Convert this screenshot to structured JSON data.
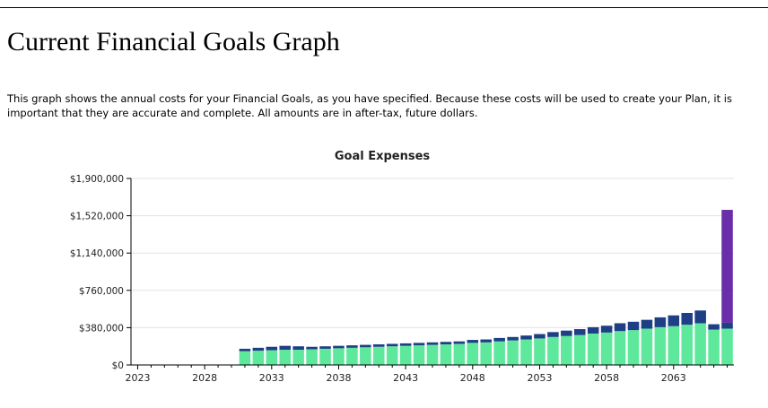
{
  "page": {
    "title": "Current Financial Goals Graph",
    "description": "This graph shows the annual costs for your Financial Goals, as you have specified.  Because these costs will be used to create your Plan, it is important that they are accurate and complete. All amounts are in after-tax, future dollars."
  },
  "colors": {
    "base_series": "#5ee89c",
    "second_series": "#1e3f86",
    "third_series": "#6a2eab",
    "gridline": "#e3e3e3",
    "axis": "#000000"
  },
  "chart_data": {
    "type": "bar",
    "stacked": true,
    "title": "Goal Expenses",
    "xlabel": "",
    "ylabel": "",
    "y_ticks": [
      "$0",
      "$380,000",
      "$760,000",
      "$1,140,000",
      "$1,520,000",
      "$1,900,000"
    ],
    "y_tick_values": [
      0,
      380000,
      760000,
      1140000,
      1520000,
      1900000
    ],
    "ylim": [
      0,
      1900000
    ],
    "x_ticks": [
      "2023",
      "2028",
      "2033",
      "2038",
      "2043",
      "2048",
      "2053",
      "2058",
      "2063"
    ],
    "grid": true,
    "legend": "none",
    "categories": [
      2023,
      2024,
      2025,
      2026,
      2027,
      2028,
      2029,
      2030,
      2031,
      2032,
      2033,
      2034,
      2035,
      2036,
      2037,
      2038,
      2039,
      2040,
      2041,
      2042,
      2043,
      2044,
      2045,
      2046,
      2047,
      2048,
      2049,
      2050,
      2051,
      2052,
      2053,
      2054,
      2055,
      2056,
      2057,
      2058,
      2059,
      2060,
      2061,
      2062,
      2063,
      2064,
      2065,
      2066,
      2067
    ],
    "series": [
      {
        "values": [
          0,
          0,
          0,
          0,
          0,
          0,
          0,
          4000,
          140000,
          145000,
          150000,
          155000,
          155000,
          160000,
          165000,
          170000,
          175000,
          180000,
          185000,
          190000,
          195000,
          200000,
          205000,
          210000,
          215000,
          225000,
          230000,
          240000,
          250000,
          260000,
          270000,
          285000,
          295000,
          305000,
          320000,
          330000,
          345000,
          355000,
          370000,
          385000,
          395000,
          410000,
          425000,
          360000,
          370000
        ]
      },
      {
        "values": [
          0,
          0,
          0,
          0,
          0,
          0,
          0,
          0,
          25000,
          30000,
          35000,
          40000,
          35000,
          25000,
          25000,
          25000,
          25000,
          25000,
          25000,
          25000,
          25000,
          25000,
          25000,
          25000,
          25000,
          30000,
          30000,
          35000,
          35000,
          40000,
          45000,
          50000,
          55000,
          60000,
          65000,
          70000,
          80000,
          85000,
          90000,
          100000,
          110000,
          120000,
          130000,
          55000,
          60000
        ]
      },
      {
        "values": [
          0,
          0,
          0,
          0,
          0,
          0,
          0,
          0,
          0,
          0,
          0,
          0,
          0,
          0,
          0,
          0,
          0,
          0,
          0,
          0,
          0,
          0,
          0,
          0,
          0,
          0,
          0,
          0,
          0,
          0,
          0,
          0,
          0,
          0,
          0,
          0,
          0,
          0,
          0,
          0,
          0,
          0,
          0,
          0,
          1150000
        ]
      }
    ]
  }
}
